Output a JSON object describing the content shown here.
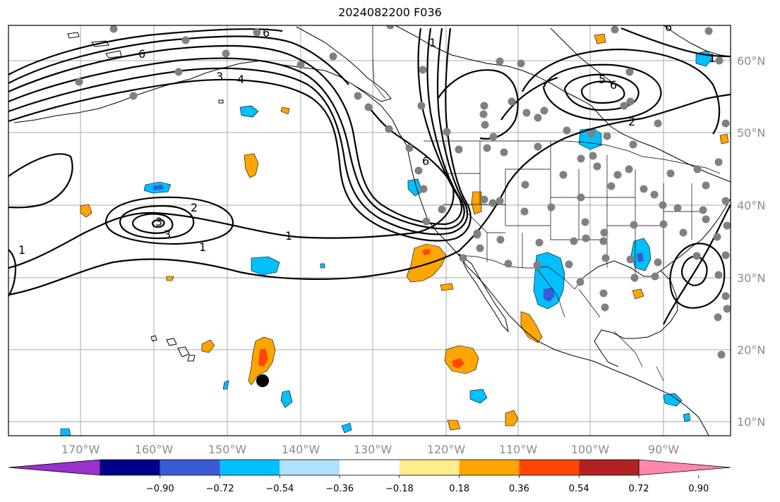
{
  "title": "2024082200 F036",
  "map": {
    "longitude_labels": [
      "170°W",
      "160°W",
      "150°W",
      "140°W",
      "130°W",
      "120°W",
      "110°W",
      "100°W",
      "90°W"
    ],
    "latitude_labels": [
      "60°N",
      "50°N",
      "40°N",
      "30°N",
      "20°N",
      "10°N"
    ],
    "contour_labels": [
      "6",
      "6",
      "1",
      "3",
      "4",
      "6",
      "5",
      "6",
      "2",
      "6",
      "1",
      "2",
      "3",
      "3",
      "1",
      "1",
      "1"
    ],
    "grid": true
  },
  "colorbar": {
    "tick_labels": [
      "−0.90",
      "−0.72",
      "−0.54",
      "−0.36",
      "−0.18",
      "0.18",
      "0.36",
      "0.54",
      "0.72",
      "0.90"
    ],
    "colors": [
      "#9932cc",
      "#00008b",
      "#3b5bd5",
      "#00bfff",
      "#b0e0ff",
      "#ffffff",
      "#ffec8b",
      "#ffa500",
      "#ff4500",
      "#b22222",
      "#ff88aa"
    ]
  },
  "colors": {
    "station_marker": "#808080",
    "highlight_marker": "#000000",
    "gridline": "#a8a8a8"
  }
}
